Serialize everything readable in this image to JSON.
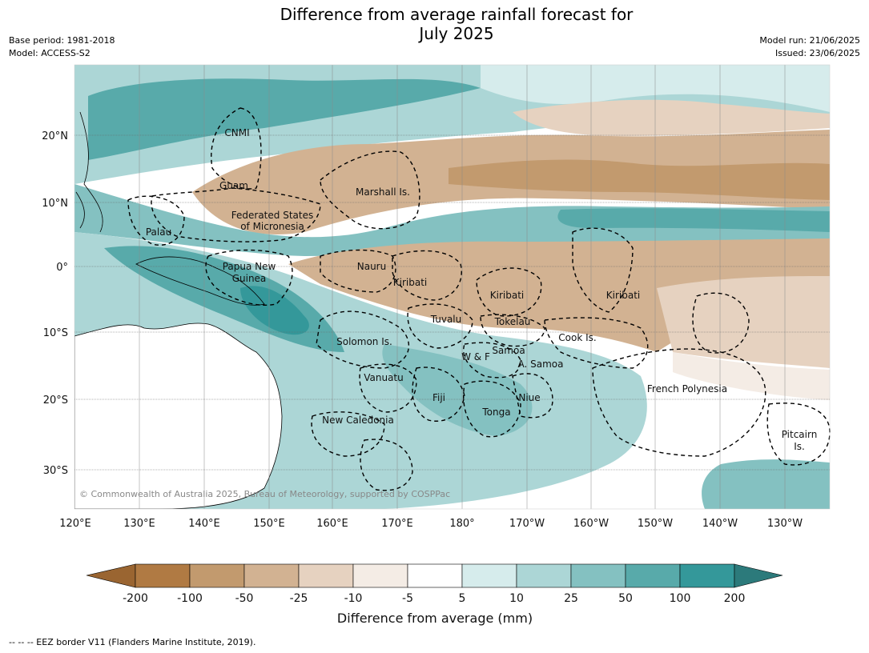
{
  "title_line1": "Difference from average rainfall forecast for",
  "title_line2": "July 2025",
  "meta": {
    "base_period": "Base period: 1981-2018",
    "model": "Model: ACCESS-S2",
    "model_run": "Model run: 21/06/2025",
    "issued": "Issued: 23/06/2025"
  },
  "map": {
    "lon_labels": [
      "120°E",
      "130°E",
      "140°E",
      "150°E",
      "160°E",
      "170°E",
      "180°",
      "170°W",
      "160°W",
      "150°W",
      "140°W",
      "130°W"
    ],
    "lat_labels": [
      "20°N",
      "10°N",
      "0°",
      "10°S",
      "20°S",
      "30°S"
    ],
    "copyright": "© Commonwealth of Australia 2025, Bureau of Meteorology, supported by COSPPac",
    "regions": [
      {
        "name": "CNMI"
      },
      {
        "name": "Guam"
      },
      {
        "name": "Marshall Is."
      },
      {
        "name": "Federated States"
      },
      {
        "name": "of Micronesia"
      },
      {
        "name": "Palau"
      },
      {
        "name": "Papua New"
      },
      {
        "name": "Guinea"
      },
      {
        "name": "Nauru"
      },
      {
        "name": "Kiribati"
      },
      {
        "name": "Kiribati"
      },
      {
        "name": "Kiribati"
      },
      {
        "name": "Tuvalu"
      },
      {
        "name": "Tokelau"
      },
      {
        "name": "Cook Is."
      },
      {
        "name": "Solomon Is."
      },
      {
        "name": "Samoa"
      },
      {
        "name": "W & F"
      },
      {
        "name": "A. Samoa"
      },
      {
        "name": "Vanuatu"
      },
      {
        "name": "Fiji"
      },
      {
        "name": "Niue"
      },
      {
        "name": "Tonga"
      },
      {
        "name": "French Polynesia"
      },
      {
        "name": "New Caledonia"
      },
      {
        "name": "Pitcairn"
      },
      {
        "name": "Is."
      }
    ]
  },
  "colorbar": {
    "labels": [
      "-200",
      "-100",
      "-50",
      "-25",
      "-10",
      "-5",
      "5",
      "10",
      "25",
      "50",
      "100",
      "200"
    ],
    "colors": [
      "#9a6531",
      "#b07a43",
      "#c29a6e",
      "#d2b292",
      "#e6d2c0",
      "#f4ece5",
      "#ffffff",
      "#d6ecec",
      "#acd6d6",
      "#84c1c1",
      "#58aaaa",
      "#34989a",
      "#2c7a7b"
    ],
    "title": "Difference from average (mm)"
  },
  "footnote": "--  --  -- EEZ border V11 (Flanders Marine Institute, 2019)."
}
